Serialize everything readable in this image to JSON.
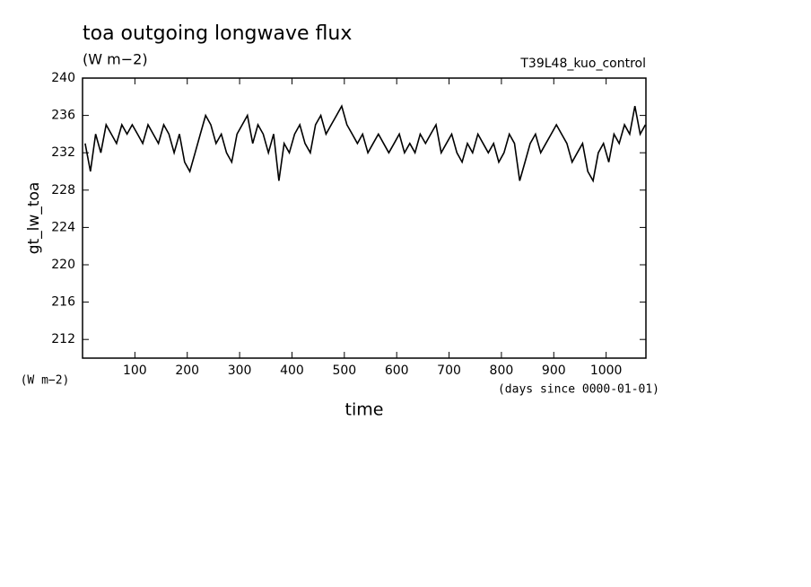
{
  "chart_data": {
    "type": "line",
    "title": "toa outgoing longwave flux",
    "subtitle": "(W m−2)",
    "run_label": "T39L48_kuo_control",
    "y_label": "gt_lw_toa",
    "y_units": "(W m−2)",
    "x_label": "time",
    "x_units": "(days since 0000-01-01)",
    "color": "#000000",
    "x": [
      5,
      15,
      25,
      35,
      45,
      55,
      65,
      75,
      85,
      95,
      105,
      115,
      125,
      135,
      145,
      155,
      165,
      175,
      185,
      195,
      205,
      215,
      225,
      235,
      245,
      255,
      265,
      275,
      285,
      295,
      305,
      315,
      325,
      335,
      345,
      355,
      365,
      375,
      385,
      395,
      405,
      415,
      425,
      435,
      445,
      455,
      465,
      475,
      485,
      495,
      505,
      515,
      525,
      535,
      545,
      555,
      565,
      575,
      585,
      595,
      605,
      615,
      625,
      635,
      645,
      655,
      665,
      675,
      685,
      695,
      705,
      715,
      725,
      735,
      745,
      755,
      765,
      775,
      785,
      795,
      805,
      815,
      825,
      835,
      845,
      855,
      865,
      875,
      885,
      895,
      905,
      915,
      925,
      935,
      945,
      955,
      965,
      975,
      985,
      995,
      1005,
      1015,
      1025,
      1035,
      1045,
      1055,
      1065,
      1075
    ],
    "values": [
      233,
      230,
      234,
      232,
      235,
      234,
      233,
      235,
      234,
      235,
      234,
      233,
      235,
      234,
      233,
      235,
      234,
      232,
      234,
      231,
      230,
      232,
      234,
      236,
      235,
      233,
      234,
      232,
      231,
      234,
      235,
      236,
      233,
      235,
      234,
      232,
      234,
      229,
      233,
      232,
      234,
      235,
      233,
      232,
      235,
      236,
      234,
      235,
      236,
      237,
      235,
      234,
      233,
      234,
      232,
      233,
      234,
      233,
      232,
      233,
      234,
      232,
      233,
      232,
      234,
      233,
      234,
      235,
      232,
      233,
      234,
      232,
      231,
      233,
      232,
      234,
      233,
      232,
      233,
      231,
      232,
      234,
      233,
      229,
      231,
      233,
      234,
      232,
      233,
      234,
      235,
      234,
      233,
      231,
      232,
      233,
      230,
      229,
      232,
      233,
      231,
      234,
      233,
      235,
      234,
      237,
      234,
      235
    ],
    "xlim": [
      0,
      1076
    ],
    "ylim": [
      210,
      240
    ],
    "xticks": [
      100,
      200,
      300,
      400,
      500,
      600,
      700,
      800,
      900,
      1000
    ],
    "yticks": [
      212,
      216,
      220,
      224,
      228,
      232,
      236,
      240
    ]
  }
}
